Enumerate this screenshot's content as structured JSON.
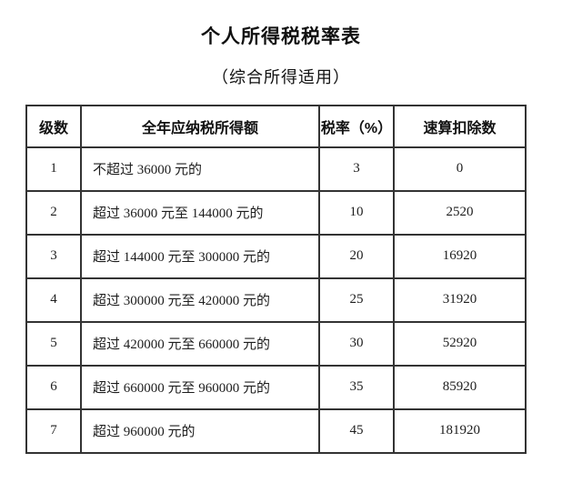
{
  "page": {
    "title": "个人所得税税率表",
    "subtitle": "（综合所得适用）"
  },
  "table": {
    "headers": [
      "级数",
      "全年应纳税所得额",
      "税率（%）",
      "速算扣除数"
    ],
    "rows": [
      {
        "level": "1",
        "income": "不超过 36000 元的",
        "rate": "3",
        "deduction": "0"
      },
      {
        "level": "2",
        "income": "超过 36000 元至 144000 元的",
        "rate": "10",
        "deduction": "2520"
      },
      {
        "level": "3",
        "income": "超过 144000 元至 300000 元的",
        "rate": "20",
        "deduction": "16920"
      },
      {
        "level": "4",
        "income": "超过 300000 元至 420000 元的",
        "rate": "25",
        "deduction": "31920"
      },
      {
        "level": "5",
        "income": "超过 420000 元至 660000 元的",
        "rate": "30",
        "deduction": "52920"
      },
      {
        "level": "6",
        "income": "超过 660000 元至 960000 元的",
        "rate": "35",
        "deduction": "85920"
      },
      {
        "level": "7",
        "income": "超过 960000 元的",
        "rate": "45",
        "deduction": "181920"
      }
    ]
  },
  "colors": {
    "background": "#ffffff",
    "text": "#1a1a1a",
    "border": "#333333"
  }
}
